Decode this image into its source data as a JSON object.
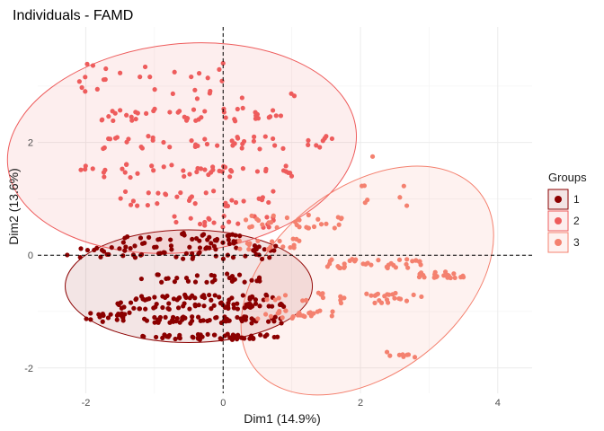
{
  "chart_data": {
    "type": "scatter",
    "title": "Individuals - FAMD",
    "xlabel": "Dim1 (14.9%)",
    "ylabel": "Dim2 (13.6%)",
    "xlim": [
      -2.7,
      4.5
    ],
    "ylim": [
      -2.45,
      4.05
    ],
    "xticks": [
      -2,
      0,
      2,
      4
    ],
    "yticks": [
      -2,
      0,
      2
    ],
    "grid": true,
    "reference_lines": {
      "x": 0,
      "y": 0
    },
    "legend": {
      "title": "Groups",
      "position": "right"
    },
    "groups": [
      {
        "name": "1",
        "color": "#8B0000",
        "ellipse": {
          "center": [
            -0.5,
            -0.55
          ],
          "rx": 1.8,
          "ry": 1.0,
          "angle_deg": 0
        },
        "clusters": [
          {
            "y": -1.45,
            "x_from": -1.2,
            "x_to": 0.8,
            "n": 50,
            "spread": 0.05
          },
          {
            "y": -1.1,
            "x_from": -2.0,
            "x_to": -1.2,
            "n": 20,
            "spread": 0.08
          },
          {
            "y": -1.15,
            "x_from": -1.2,
            "x_to": 0.9,
            "n": 55,
            "spread": 0.06
          },
          {
            "y": -0.9,
            "x_from": -1.6,
            "x_to": 0.9,
            "n": 55,
            "spread": 0.06
          },
          {
            "y": -0.75,
            "x_from": -1.3,
            "x_to": 0.8,
            "n": 40,
            "spread": 0.05
          },
          {
            "y": -0.4,
            "x_from": -1.2,
            "x_to": 0.6,
            "n": 30,
            "spread": 0.08
          },
          {
            "y": 0.05,
            "x_from": -2.3,
            "x_to": 0.8,
            "n": 65,
            "spread": 0.12
          },
          {
            "y": 0.3,
            "x_from": -1.6,
            "x_to": 0.3,
            "n": 35,
            "spread": 0.1
          }
        ]
      },
      {
        "name": "2",
        "color": "#EE5C5C",
        "ellipse": {
          "center": [
            -0.6,
            1.9
          ],
          "rx": 2.55,
          "ry": 1.85,
          "angle_deg": -6
        },
        "clusters": [
          {
            "y": 3.1,
            "x_from": -2.1,
            "x_to": 1.4,
            "n": 30,
            "spread": 0.35
          },
          {
            "y": 2.5,
            "x_from": -1.8,
            "x_to": 0.9,
            "n": 45,
            "spread": 0.12
          },
          {
            "y": 2.0,
            "x_from": -1.8,
            "x_to": 1.6,
            "n": 45,
            "spread": 0.12
          },
          {
            "y": 1.5,
            "x_from": -2.1,
            "x_to": 1.2,
            "n": 45,
            "spread": 0.12
          },
          {
            "y": 1.0,
            "x_from": -1.5,
            "x_to": 0.8,
            "n": 30,
            "spread": 0.15
          },
          {
            "y": 0.6,
            "x_from": -1.0,
            "x_to": 0.8,
            "n": 20,
            "spread": 0.12
          }
        ]
      },
      {
        "name": "3",
        "color": "#F4816F",
        "ellipse": {
          "center": [
            2.1,
            -0.45
          ],
          "rx": 2.08,
          "ry": 1.65,
          "angle_deg": -38
        },
        "clusters": [
          {
            "y": 1.2,
            "x_from": 2.0,
            "x_to": 2.7,
            "n": 8,
            "spread": 0.6
          },
          {
            "y": 0.6,
            "x_from": 0.3,
            "x_to": 1.8,
            "n": 30,
            "spread": 0.12
          },
          {
            "y": 0.2,
            "x_from": 0.2,
            "x_to": 1.2,
            "n": 20,
            "spread": 0.1
          },
          {
            "y": -0.15,
            "x_from": 1.5,
            "x_to": 2.9,
            "n": 35,
            "spread": 0.08
          },
          {
            "y": -0.35,
            "x_from": 2.8,
            "x_to": 3.5,
            "n": 25,
            "spread": 0.06
          },
          {
            "y": -0.75,
            "x_from": 0.6,
            "x_to": 2.9,
            "n": 35,
            "spread": 0.1
          },
          {
            "y": -1.05,
            "x_from": 0.5,
            "x_to": 1.6,
            "n": 25,
            "spread": 0.08
          },
          {
            "y": -1.75,
            "x_from": 2.3,
            "x_to": 2.8,
            "n": 8,
            "spread": 0.06
          }
        ]
      }
    ]
  }
}
